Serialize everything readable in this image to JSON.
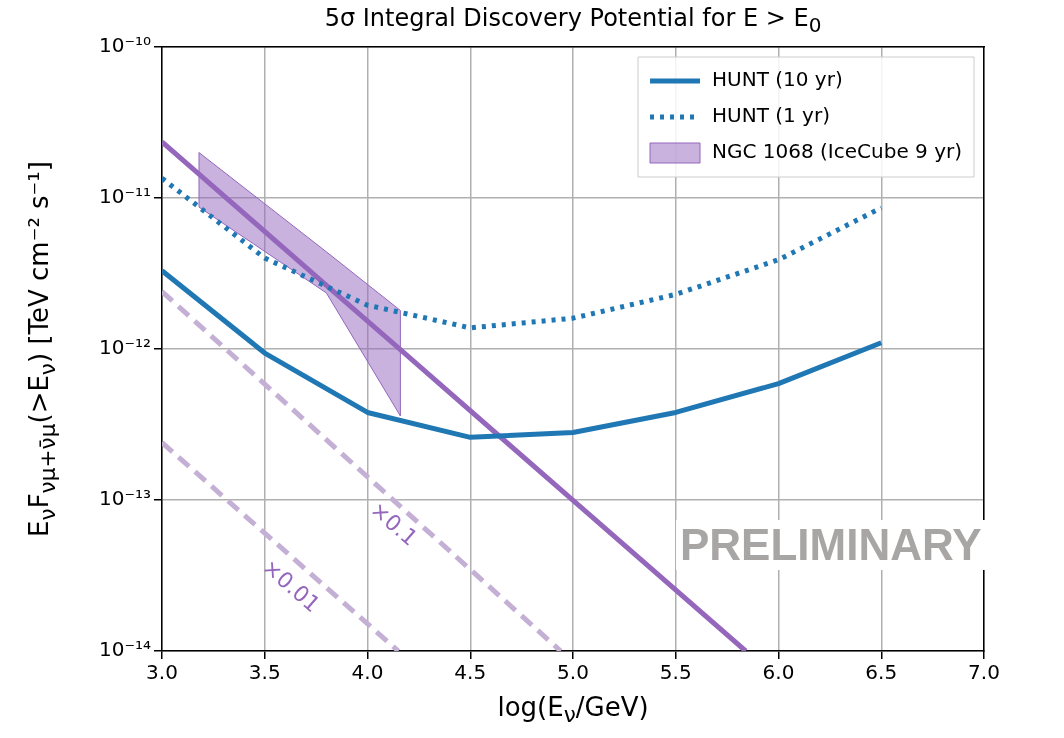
{
  "chart_data": {
    "type": "line",
    "title": "5σ Integral Discovery Potential for E > E$_{0}$",
    "xlabel": "log(E$_{ν}$/GeV)",
    "ylabel": "E$_{ν}$F$_{νμ+ν̄μ}$(>E$_{ν}$) [TeV cm⁻² s⁻¹]",
    "xlim": [
      3,
      7
    ],
    "xticks": [
      {
        "value": 3,
        "label": "3.0"
      },
      {
        "value": 3.5,
        "label": "3.5"
      },
      {
        "value": 4,
        "label": "4.0"
      },
      {
        "value": 4.5,
        "label": "4.5"
      },
      {
        "value": 5,
        "label": "5.0"
      },
      {
        "value": 5.5,
        "label": "5.5"
      },
      {
        "value": 6,
        "label": "6.0"
      },
      {
        "value": 6.5,
        "label": "6.5"
      },
      {
        "value": 7,
        "label": "7.0"
      }
    ],
    "ylim": [
      1e-14,
      1e-10
    ],
    "yticks": [
      {
        "value": 1e-14,
        "label": "10⁻¹⁴"
      },
      {
        "value": 1e-13,
        "label": "10⁻¹³"
      },
      {
        "value": 1e-12,
        "label": "10⁻¹²"
      },
      {
        "value": 1e-11,
        "label": "10⁻¹¹"
      },
      {
        "value": 1e-10,
        "label": "10⁻¹⁰"
      }
    ],
    "log": "y",
    "grid": true,
    "legend": "top right",
    "marker": "none",
    "series": [
      {
        "name": "HUNT (10 yr)",
        "color": "#1f77b4",
        "line_style": "solid",
        "x": [
          3,
          3.5,
          4,
          4.5,
          5,
          5.5,
          6,
          6.5
        ],
        "values": [
          3.3e-12,
          9.4e-13,
          3.8e-13,
          2.6e-13,
          2.8e-13,
          3.8e-13,
          5.9e-13,
          1.1e-12
        ]
      },
      {
        "name": "HUNT (1 yr)",
        "color": "#1f77b4",
        "line_style": "dotted",
        "x": [
          3,
          3.2,
          3.5,
          4,
          4.2,
          4.5,
          5,
          5.5,
          6,
          6.5
        ],
        "values": [
          1.35e-11,
          8.3e-12,
          4e-12,
          1.95e-12,
          1.7e-12,
          1.38e-12,
          1.6e-12,
          2.3e-12,
          3.9e-12,
          8.6e-12
        ]
      },
      {
        "name": "NGC 1068 (IceCube 9 yr)",
        "color": "#9467bd",
        "line_style": "solid",
        "x": [
          3,
          3.18,
          3.8,
          4.16,
          5.84
        ],
        "values": [
          2.35e-11,
          1.44e-11,
          2.64e-12,
          9.9e-13,
          1e-14
        ],
        "lower": [
          null,
          8.7e-12,
          2.35e-12,
          3.6e-13,
          null
        ],
        "upper": [
          null,
          2e-11,
          4.4e-12,
          1.8e-12,
          null
        ]
      },
      {
        "color": "#c5b0d5",
        "line_style": "dashed",
        "x": [
          3,
          4.94
        ],
        "values": [
          2.4e-12,
          1e-14
        ]
      },
      {
        "color": "#c5b0d5",
        "line_style": "dashed",
        "x": [
          3,
          4.15
        ],
        "values": [
          2.4e-13,
          1e-14
        ]
      }
    ],
    "annotations": [
      {
        "text": "×0.1",
        "x": 4.2,
        "y": 9e-14
      },
      {
        "text": "×0.01",
        "x": 3.7,
        "y": 3.5e-14
      },
      "PRELIMINARY"
    ]
  }
}
